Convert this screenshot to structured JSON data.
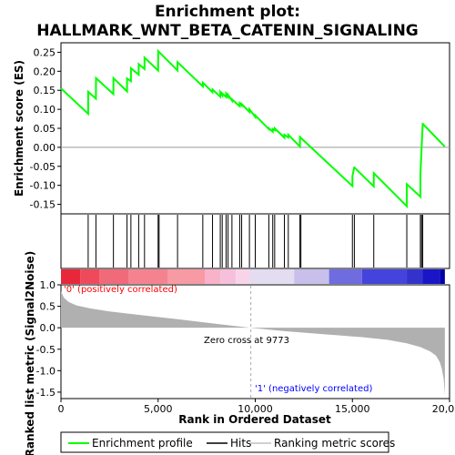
{
  "chart_data": {
    "type": "line",
    "title_line1": "Enrichment plot:",
    "title_line2": "HALLMARK_WNT_BETA_CATENIN_SIGNALING",
    "top_panel": {
      "ylabel": "Enrichment score (ES)",
      "ylim": [
        -0.175,
        0.275
      ],
      "yticks": [
        "0.25",
        "0.20",
        "0.15",
        "0.10",
        "0.05",
        "0.00",
        "-0.05",
        "-0.10",
        "-0.15"
      ],
      "ytick_values": [
        0.25,
        0.2,
        0.15,
        0.1,
        0.05,
        0.0,
        -0.05,
        -0.1,
        -0.15
      ],
      "series": [
        {
          "name": "Enrichment profile",
          "color": "#00ff00",
          "x": [
            0,
            1400,
            1401,
            1800,
            1801,
            2700,
            2701,
            3400,
            3401,
            3600,
            3601,
            4000,
            4001,
            4300,
            4301,
            5000,
            5001,
            6000,
            6001,
            7300,
            7301,
            7800,
            7801,
            8200,
            8201,
            8300,
            8301,
            8500,
            8501,
            8600,
            8601,
            8800,
            8801,
            9200,
            9201,
            9300,
            9301,
            9700,
            9701,
            10000,
            10001,
            10700,
            10701,
            10900,
            10901,
            11000,
            11001,
            11500,
            11501,
            11700,
            11701,
            12300,
            12301,
            15000,
            15001,
            15100,
            15101,
            16100,
            16101,
            17800,
            17801,
            18500,
            18501,
            18560,
            18561,
            18620,
            18621,
            19750
          ],
          "y": [
            0.155,
            0.088,
            0.146,
            0.128,
            0.182,
            0.14,
            0.182,
            0.147,
            0.181,
            0.174,
            0.208,
            0.191,
            0.219,
            0.206,
            0.236,
            0.202,
            0.253,
            0.202,
            0.224,
            0.16,
            0.17,
            0.145,
            0.152,
            0.133,
            0.145,
            0.137,
            0.142,
            0.132,
            0.141,
            0.133,
            0.138,
            0.123,
            0.126,
            0.108,
            0.116,
            0.11,
            0.114,
            0.093,
            0.1,
            0.08,
            0.084,
            0.048,
            0.05,
            0.041,
            0.048,
            0.045,
            0.05,
            0.025,
            0.033,
            0.026,
            0.033,
            0.002,
            0.027,
            -0.102,
            -0.076,
            -0.051,
            -0.053,
            -0.103,
            -0.068,
            -0.155,
            -0.097,
            -0.13,
            -0.07,
            -0.003,
            -0.003,
            0.062,
            0.062,
            0.002
          ]
        }
      ]
    },
    "hits": [
      1400,
      1800,
      2700,
      3400,
      3600,
      4000,
      4300,
      5000,
      5050,
      6000,
      7300,
      7800,
      8200,
      8300,
      8500,
      8600,
      8800,
      9200,
      9300,
      9700,
      10000,
      10700,
      10900,
      11000,
      11500,
      11700,
      12300,
      12350,
      15000,
      15100,
      16100,
      17800,
      18500,
      18560,
      18620
    ],
    "bottom_panel": {
      "ylabel": "Ranked list metric (Signal2Noise)",
      "ylim": [
        -1.65,
        1.0
      ],
      "yticks": [
        "1.0",
        "0.5",
        "0.0",
        "-0.5",
        "-1.0",
        "-1.5"
      ],
      "ytick_values": [
        1.0,
        0.5,
        0.0,
        -0.5,
        -1.0,
        -1.5
      ],
      "metric_x": [
        0,
        150,
        400,
        800,
        1500,
        2500,
        4000,
        6000,
        8000,
        9773,
        11500,
        13500,
        15500,
        16800,
        17800,
        18500,
        19000,
        19300,
        19500,
        19600,
        19700,
        19760
      ],
      "metric_y": [
        0.85,
        0.7,
        0.6,
        0.52,
        0.45,
        0.38,
        0.3,
        0.2,
        0.09,
        0.0,
        -0.08,
        -0.15,
        -0.22,
        -0.28,
        -0.36,
        -0.45,
        -0.55,
        -0.65,
        -0.8,
        -0.95,
        -1.2,
        -1.58
      ],
      "zero_cross_label": "Zero cross at 9773",
      "zero_cross": 9773,
      "pos_label": "'0' (positively correlated)",
      "neg_label": "'1' (negatively correlated)",
      "pos_color": "#ff0000",
      "neg_color": "#0000ff",
      "metric_color": "#b0b0b0"
    },
    "xlabel": "Rank in Ordered Dataset",
    "xlim": [
      0,
      20000
    ],
    "xticks": [
      "0",
      "5,000",
      "10,000",
      "15,000",
      "20,000"
    ],
    "xtick_values": [
      0,
      5000,
      10000,
      15000,
      20000
    ],
    "heat_bands": [
      [
        0,
        1000,
        "#e8273b"
      ],
      [
        1000,
        2000,
        "#ef4a5c"
      ],
      [
        2000,
        3500,
        "#f16a7a"
      ],
      [
        3500,
        5500,
        "#f4838f"
      ],
      [
        5500,
        7400,
        "#f79aa4"
      ],
      [
        7400,
        8200,
        "#f8b2c9"
      ],
      [
        8200,
        9000,
        "#f6c0dc"
      ],
      [
        9000,
        9700,
        "#f9d4e8"
      ],
      [
        9700,
        12000,
        "#e4dcf1"
      ],
      [
        12000,
        13800,
        "#c8c0ea"
      ],
      [
        13800,
        15500,
        "#6f6ce0"
      ],
      [
        15500,
        17800,
        "#4444dd"
      ],
      [
        17800,
        18600,
        "#3333cc"
      ],
      [
        18600,
        19500,
        "#1a16c8"
      ],
      [
        19500,
        19760,
        "#0000aa"
      ]
    ],
    "legend": {
      "items": [
        {
          "label": "Enrichment profile",
          "color": "#00ff00"
        },
        {
          "label": "Hits",
          "color": "#000000"
        },
        {
          "label": "Ranking metric scores",
          "color": "#c0c0c0"
        }
      ]
    }
  }
}
